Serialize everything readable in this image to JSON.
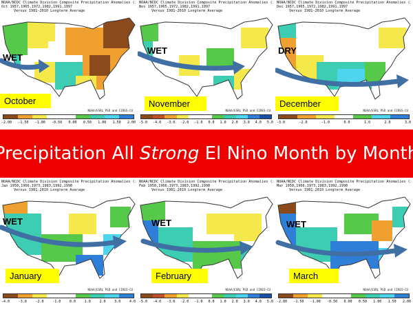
{
  "banner": {
    "part1": "Precipitation All ",
    "part2": "Strong",
    "part3": " El Nino Month by Month"
  },
  "colors": {
    "brown": "#8b4a1c",
    "orange": "#f0a030",
    "yellow": "#f5e84a",
    "white": "#ffffff",
    "green": "#57c94a",
    "teal": "#3ccdb2",
    "cyan": "#4fd4ee",
    "blue": "#2f7fd9",
    "banner_red": "#ee0000",
    "label_yellow": "#ffff00",
    "arrow": "#3f6fa3"
  },
  "panels": [
    {
      "id": "october",
      "line1": "NOAA/NCDC Climate Division Composite Precipitation Anomalies (in)",
      "line2": "Oct  1957,1965,1972,1982,1991,1997",
      "line3": "Versus 1981-2010 Longterm Average",
      "credit": "NOAA/ESRL PSD and CIRES-CU",
      "month": "October",
      "tag": "WET",
      "ticks": [
        "-2.00",
        "-1.50",
        "-1.00",
        "-0.50",
        "0.00",
        "0.50",
        "1.00",
        "1.50",
        "2.00"
      ]
    },
    {
      "id": "november",
      "line1": "NOAA/NCDC Climate Division Composite Precipitation Anomalies (in)",
      "line2": "Nov  1957,1965,1972,1982,1991,1997",
      "line3": "Versus 1981-2010 Longterm Average",
      "credit": "NOAA/ESRL PSD and CIRES-CU",
      "month": "November",
      "tag": "WET",
      "ticks": [
        "-5.0",
        "-4.0",
        "-3.0",
        "-2.0",
        "-1.0",
        "0.0",
        "1.0",
        "2.0",
        "3.0",
        "4.0",
        "5.0"
      ]
    },
    {
      "id": "december",
      "line1": "NOAA/NCDC Climate Division Composite Precipitation Anomalies (in)",
      "line2": "Dec  1957,1965,1972,1982,1991,1997",
      "line3": "Versus 1981-2010 Longterm Average",
      "credit": "NOAA/ESRL PSD and CIRES-CU",
      "month": "December",
      "tag": "DRY",
      "ticks": [
        "-3.0",
        "-2.0",
        "-1.0",
        "0.0",
        "1.0",
        "2.0",
        "3.0"
      ]
    },
    {
      "id": "january",
      "line1": "NOAA/NCDC Climate Division Composite Precipitation Anomalies (in)",
      "line2": "Jan  1958,1966,1973,1983,1992,1998",
      "line3": "Versus 1981-2010 Longterm Average",
      "credit": "NOAA/ESRL PSD and CIRES-CU",
      "month": "January",
      "tag": "WET",
      "ticks": [
        "-4.0",
        "-3.0",
        "-2.0",
        "-1.0",
        "0.0",
        "1.0",
        "2.0",
        "3.0",
        "4.0"
      ]
    },
    {
      "id": "february",
      "line1": "NOAA/NCDC Climate Division Composite Precipitation Anomalies (in)",
      "line2": "Feb  1958,1966,1973,1983,1992,1998",
      "line3": "Versus 1981-2010 Longterm Average",
      "credit": "NOAA/ESRL PSD and CIRES-CU",
      "month": "February",
      "tag": "WET",
      "ticks": [
        "-5.0",
        "-4.0",
        "-3.0",
        "-2.0",
        "-1.0",
        "0.0",
        "1.0",
        "2.0",
        "3.0",
        "4.0",
        "5.0"
      ]
    },
    {
      "id": "march",
      "line1": "NOAA/NCDC Climate Division Composite Precipitation Anomalies (in)",
      "line2": "Mar  1958,1966,1973,1983,1992,1998",
      "line3": "Versus 1981-2010 Longterm Average",
      "credit": "NOAA/ESRL PSD and CIRES-CU",
      "month": "March",
      "tag": "WET",
      "ticks": [
        "-2.00",
        "-1.50",
        "-1.00",
        "-0.50",
        "0.00",
        "0.50",
        "1.00",
        "1.50",
        "2.00"
      ]
    }
  ]
}
